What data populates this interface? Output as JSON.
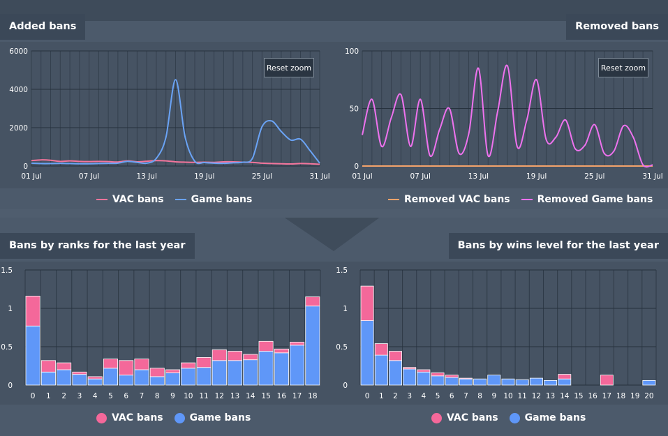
{
  "colors": {
    "vac_line": "#f4759c",
    "game_line": "#6aa3f5",
    "removed_vac_line": "#f4a36b",
    "removed_game_line": "#ee72ee",
    "vac_bar": "#f4689a",
    "game_bar": "#5f97f8"
  },
  "reset_zoom_label": "Reset zoom",
  "chart_data": [
    {
      "id": "added",
      "type": "line",
      "title": "Added bans",
      "x": [
        "01 Jul",
        "02 Jul",
        "03 Jul",
        "04 Jul",
        "05 Jul",
        "06 Jul",
        "07 Jul",
        "08 Jul",
        "09 Jul",
        "10 Jul",
        "11 Jul",
        "12 Jul",
        "13 Jul",
        "14 Jul",
        "15 Jul",
        "16 Jul",
        "17 Jul",
        "18 Jul",
        "19 Jul",
        "20 Jul",
        "21 Jul",
        "22 Jul",
        "23 Jul",
        "24 Jul",
        "25 Jul",
        "26 Jul",
        "27 Jul",
        "28 Jul",
        "29 Jul",
        "30 Jul",
        "31 Jul"
      ],
      "xticks": [
        "01 Jul",
        "07 Jul",
        "13 Jul",
        "19 Jul",
        "25 Jul",
        "31 Jul"
      ],
      "yticks": [
        0,
        2000,
        4000,
        6000
      ],
      "ylim": [
        0,
        6000
      ],
      "series": [
        {
          "name": "VAC bans",
          "values": [
            280,
            320,
            300,
            240,
            270,
            240,
            230,
            240,
            230,
            210,
            270,
            220,
            250,
            280,
            270,
            220,
            200,
            190,
            200,
            190,
            220,
            220,
            200,
            190,
            150,
            130,
            120,
            110,
            130,
            120,
            90
          ]
        },
        {
          "name": "Game bans",
          "values": [
            150,
            130,
            130,
            140,
            130,
            120,
            120,
            130,
            140,
            150,
            240,
            190,
            150,
            400,
            1500,
            4500,
            1500,
            250,
            180,
            150,
            140,
            170,
            200,
            400,
            2050,
            2350,
            1800,
            1350,
            1400,
            800,
            150
          ]
        }
      ]
    },
    {
      "id": "removed",
      "type": "line",
      "title": "Removed bans",
      "x": [
        "01 Jul",
        "02 Jul",
        "03 Jul",
        "04 Jul",
        "05 Jul",
        "06 Jul",
        "07 Jul",
        "08 Jul",
        "09 Jul",
        "10 Jul",
        "11 Jul",
        "12 Jul",
        "13 Jul",
        "14 Jul",
        "15 Jul",
        "16 Jul",
        "17 Jul",
        "18 Jul",
        "19 Jul",
        "20 Jul",
        "21 Jul",
        "22 Jul",
        "23 Jul",
        "24 Jul",
        "25 Jul",
        "26 Jul",
        "27 Jul",
        "28 Jul",
        "29 Jul",
        "30 Jul",
        "31 Jul"
      ],
      "xticks": [
        "01 Jul",
        "07 Jul",
        "13 Jul",
        "19 Jul",
        "25 Jul",
        "31 Jul"
      ],
      "yticks": [
        0,
        50,
        100
      ],
      "ylim": [
        0,
        100
      ],
      "series": [
        {
          "name": "Removed VAC bans",
          "values": [
            0,
            0,
            0,
            0,
            0,
            0,
            0,
            0,
            0,
            0,
            0,
            0,
            0,
            0,
            0,
            0,
            0,
            0,
            0,
            0,
            0,
            0,
            0,
            0,
            0,
            0,
            0,
            0,
            0,
            0,
            0
          ]
        },
        {
          "name": "Removed Game bans",
          "values": [
            27,
            58,
            17,
            42,
            62,
            17,
            58,
            9,
            32,
            50,
            11,
            28,
            85,
            9,
            48,
            87,
            17,
            40,
            75,
            23,
            25,
            40,
            15,
            18,
            36,
            11,
            13,
            35,
            25,
            1,
            1
          ]
        }
      ]
    },
    {
      "id": "ranks",
      "type": "bar",
      "stacked": true,
      "title": "Bans by ranks for the last year",
      "categories": [
        "0",
        "1",
        "2",
        "3",
        "4",
        "5",
        "6",
        "7",
        "8",
        "9",
        "10",
        "11",
        "12",
        "13",
        "14",
        "15",
        "16",
        "17",
        "18"
      ],
      "yticks": [
        0,
        0.5,
        1,
        1.5
      ],
      "ylim": [
        0,
        1.5
      ],
      "series": [
        {
          "name": "VAC bans",
          "values": [
            0.39,
            0.15,
            0.09,
            0.03,
            0.03,
            0.12,
            0.19,
            0.14,
            0.11,
            0.04,
            0.07,
            0.13,
            0.14,
            0.12,
            0.07,
            0.13,
            0.05,
            0.04,
            0.12
          ]
        },
        {
          "name": "Game bans",
          "values": [
            0.77,
            0.17,
            0.2,
            0.14,
            0.08,
            0.22,
            0.13,
            0.2,
            0.11,
            0.16,
            0.22,
            0.23,
            0.32,
            0.32,
            0.33,
            0.44,
            0.42,
            0.52,
            1.03
          ]
        }
      ]
    },
    {
      "id": "wins",
      "type": "bar",
      "stacked": true,
      "title": "Bans by wins level for the last year",
      "categories": [
        "0",
        "1",
        "2",
        "3",
        "4",
        "5",
        "6",
        "7",
        "8",
        "9",
        "10",
        "11",
        "12",
        "13",
        "14",
        "15",
        "16",
        "17",
        "18",
        "19",
        "20"
      ],
      "yticks": [
        0,
        0.5,
        1,
        1.5
      ],
      "ylim": [
        0,
        1.5
      ],
      "series": [
        {
          "name": "VAC bans",
          "values": [
            0.45,
            0.15,
            0.12,
            0.02,
            0.03,
            0.04,
            0.03,
            0.01,
            0,
            0,
            0,
            0,
            0,
            0,
            0.06,
            0,
            0,
            0.13,
            0,
            0,
            0
          ]
        },
        {
          "name": "Game bans",
          "values": [
            0.84,
            0.39,
            0.32,
            0.21,
            0.17,
            0.12,
            0.1,
            0.08,
            0.08,
            0.13,
            0.08,
            0.07,
            0.09,
            0.06,
            0.08,
            0,
            0,
            0,
            0,
            0,
            0.06
          ]
        }
      ]
    }
  ]
}
